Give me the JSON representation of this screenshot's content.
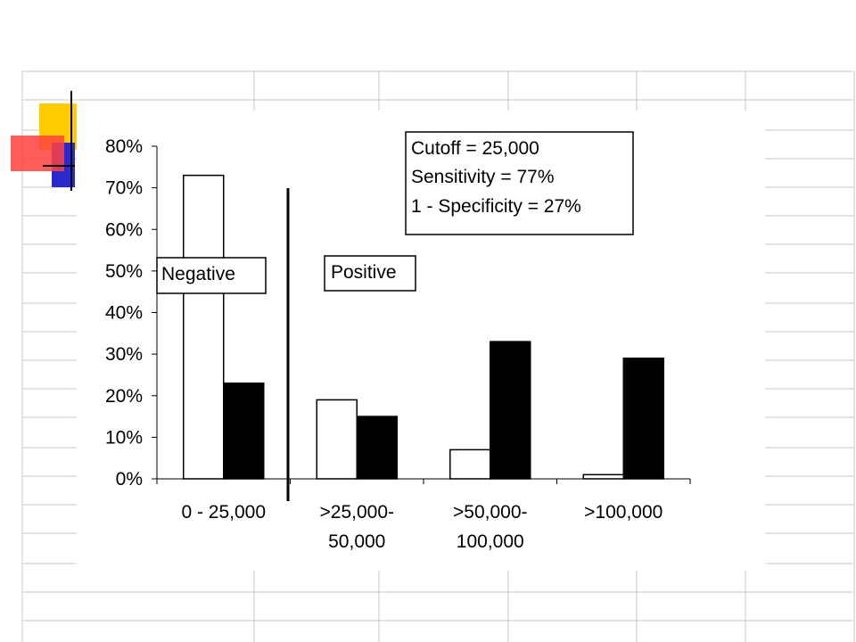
{
  "colors": {
    "logo_yellow": "#ffcc00",
    "logo_blue": "#2a2acc",
    "logo_red": "#ff4040",
    "grid": "#c8c8c8",
    "series_fill_1": "#ffffff",
    "series_fill_2": "#000000"
  },
  "chart_data": {
    "type": "bar",
    "categories": [
      [
        "0 - 25,000"
      ],
      [
        ">25,000-",
        "50,000"
      ],
      [
        ">50,000-",
        "100,000"
      ],
      [
        ">100,000"
      ]
    ],
    "series": [
      {
        "values": [
          73,
          19,
          7,
          1
        ],
        "fill": "#ffffff"
      },
      {
        "values": [
          23,
          15,
          33,
          29
        ],
        "fill": "#000000"
      }
    ],
    "ylim": [
      0,
      80
    ],
    "yticks": [
      0,
      10,
      20,
      30,
      40,
      50,
      60,
      70,
      80
    ],
    "ytick_labels": [
      "0%",
      "10%",
      "20%",
      "30%",
      "40%",
      "50%",
      "60%",
      "70%",
      "80%"
    ],
    "cutoff_between_categories": [
      0,
      1
    ],
    "annotations": {
      "info_box": [
        "Cutoff = 25,000",
        "Sensitivity = 77%",
        "1 - Specificity = 27%"
      ],
      "negative_label": "Negative",
      "positive_label": "Positive"
    },
    "grid": false,
    "legend": "none"
  }
}
